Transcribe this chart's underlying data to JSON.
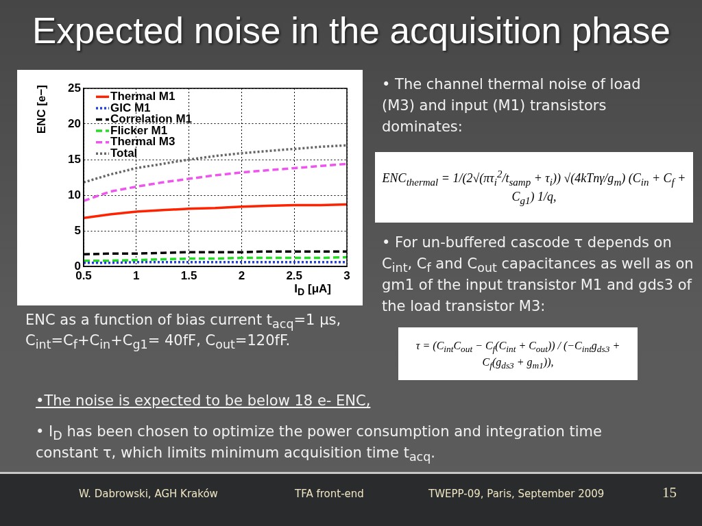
{
  "chart_data": {
    "type": "line",
    "title": "Expected noise in the acquisition phase",
    "xlabel": "I$_{D}$ [μA]",
    "ylabel": "ENC [e−]",
    "x": [
      0.5,
      0.75,
      1,
      1.25,
      1.5,
      1.75,
      2,
      2.25,
      2.5,
      2.75,
      3
    ],
    "series": [
      {
        "name": "Thermal M1",
        "color": "#ff2200",
        "line_style": "solid",
        "values": [
          6.8,
          7.3,
          7.7,
          7.9,
          8.1,
          8.2,
          8.4,
          8.5,
          8.6,
          8.6,
          8.7
        ]
      },
      {
        "name": "GIC M1",
        "color": "#1f3fe0",
        "line_style": "dotted",
        "values": [
          0.5,
          0.5,
          0.6,
          0.6,
          0.6,
          0.6,
          0.6,
          0.6,
          0.6,
          0.6,
          0.6
        ]
      },
      {
        "name": "Correlation M1",
        "color": "#000000",
        "line_style": "dashed",
        "values": [
          1.7,
          1.8,
          1.8,
          1.9,
          2.0,
          2.0,
          2.0,
          2.1,
          2.1,
          2.1,
          2.1
        ]
      },
      {
        "name": "Flicker M1",
        "color": "#22dd22",
        "line_style": "dashed",
        "values": [
          0.8,
          0.8,
          0.9,
          1.0,
          1.1,
          1.1,
          1.2,
          1.2,
          1.2,
          1.2,
          1.3
        ]
      },
      {
        "name": "Thermal M3",
        "color": "#ee55ee",
        "line_style": "dashed",
        "values": [
          9.2,
          10.5,
          11.2,
          11.8,
          12.3,
          12.8,
          13.2,
          13.5,
          13.8,
          14.1,
          14.4
        ]
      },
      {
        "name": "Total",
        "color": "#666666",
        "line_style": "dotted",
        "values": [
          11.8,
          12.9,
          13.8,
          14.4,
          15.0,
          15.5,
          15.9,
          16.2,
          16.5,
          16.8,
          17.0
        ]
      }
    ],
    "xlim": [
      0.5,
      3
    ],
    "xticks": [
      0.5,
      1,
      1.5,
      2,
      2.5,
      3
    ],
    "ylim": [
      0,
      25
    ],
    "yticks": [
      0,
      5,
      10,
      15,
      20,
      25
    ],
    "grid": true,
    "legend": "top left",
    "annotations": [
      "ENC as a function of bias current t$_{acq}$=1 μs, C$_{int}$=C$_{f}$+C$_{in}$+C$_{g1}$= 40fF, C$_{out}$=120fF.",
      "• The channel thermal noise of load (M3) and input (M1) transistors dominates:",
      "ENC$_{thermal}$ = 1/(2√(πτ$_{i}$$^{2}$/t$_{samp}$ + τ$_{i}$)) √(4kTnγ/g$_{m}$) (C$_{in}$ + C$_{f}$ + C$_{g1}$) 1/q,",
      "• For un-buffered cascode τ depends on C$_{int}$, C$_{f}$ and C$_{out}$ capacitances as well as on gm1 of the input transistor M1 and gds3 of the load transistor M3:",
      "τ = (C$_{int}$C$_{out}$ − C$_{f}$(C$_{int}$ + C$_{out}$)) / (−C$_{int}$g$_{ds3}$ + C$_{f}$(g$_{ds3}$ + g$_{m1}$)),",
      "•The noise is expected to be below 18 e- ENC,",
      "• I$_{D}$ has been chosen to optimize the power consumption and integration time constant τ, which limits minimum acquisition time t$_{acq}$.",
      "W. Dabrowski, AGH Kraków",
      "TFA front-end",
      "TWEPP-09, Paris, September 2009",
      "15"
    ]
  }
}
